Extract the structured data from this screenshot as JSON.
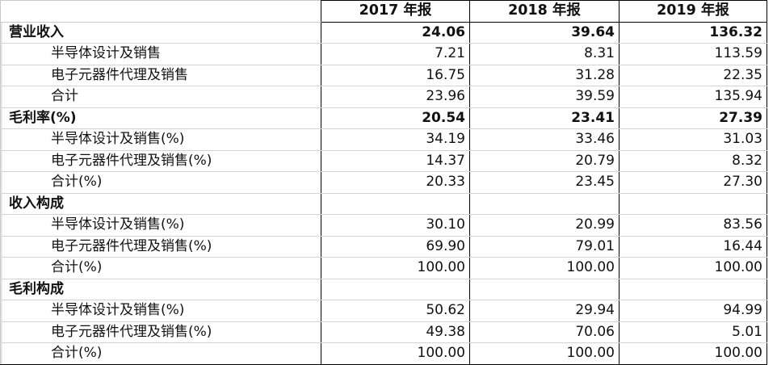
{
  "columns": [
    "",
    "2017 年报",
    "2018 年报",
    "2019 年报"
  ],
  "rows": [
    {
      "label": "营业收入",
      "type": "section",
      "values": [
        "24.06",
        "39.64",
        "136.32"
      ]
    },
    {
      "label": "半导体设计及销售",
      "type": "sub",
      "values": [
        "7.21",
        "8.31",
        "113.59"
      ]
    },
    {
      "label": "电子元器件代理及销售",
      "type": "sub",
      "values": [
        "16.75",
        "31.28",
        "22.35"
      ]
    },
    {
      "label": "合计",
      "type": "sub",
      "values": [
        "23.96",
        "39.59",
        "135.94"
      ]
    },
    {
      "label": "毛利率(%)",
      "type": "section",
      "values": [
        "20.54",
        "23.41",
        "27.39"
      ]
    },
    {
      "label": "半导体设计及销售(%)",
      "type": "sub",
      "values": [
        "34.19",
        "33.46",
        "31.03"
      ]
    },
    {
      "label": "电子元器件代理及销售(%)",
      "type": "sub",
      "values": [
        "14.37",
        "20.79",
        "8.32"
      ]
    },
    {
      "label": "合计(%)",
      "type": "sub",
      "values": [
        "20.33",
        "23.45",
        "27.30"
      ]
    },
    {
      "label": "收入构成",
      "type": "section",
      "values": [
        "",
        "",
        ""
      ]
    },
    {
      "label": "半导体设计及销售(%)",
      "type": "sub",
      "values": [
        "30.10",
        "20.99",
        "83.56"
      ]
    },
    {
      "label": "电子元器件代理及销售(%)",
      "type": "sub",
      "values": [
        "69.90",
        "79.01",
        "16.44"
      ]
    },
    {
      "label": "合计(%)",
      "type": "sub",
      "values": [
        "100.00",
        "100.00",
        "100.00"
      ]
    },
    {
      "label": "毛利构成",
      "type": "section",
      "values": [
        "",
        "",
        ""
      ]
    },
    {
      "label": "半导体设计及销售(%)",
      "type": "sub",
      "values": [
        "50.62",
        "29.94",
        "94.99"
      ]
    },
    {
      "label": "电子元器件代理及销售(%)",
      "type": "sub",
      "values": [
        "49.38",
        "70.06",
        "5.01"
      ]
    },
    {
      "label": "合计(%)",
      "type": "sub",
      "values": [
        "100.00",
        "100.00",
        "100.00"
      ]
    }
  ]
}
